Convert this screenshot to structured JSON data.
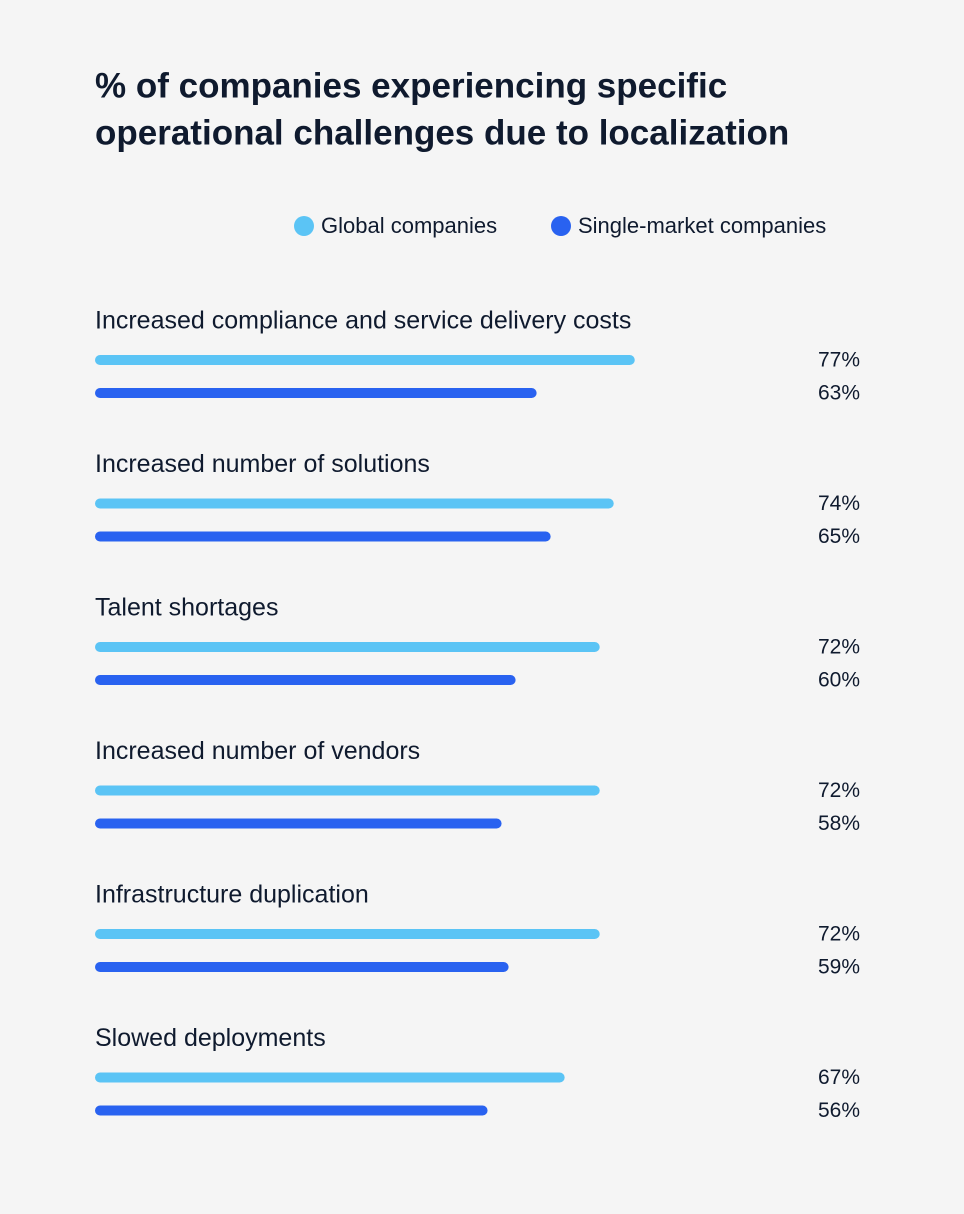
{
  "chart_data": {
    "type": "bar",
    "orientation": "horizontal",
    "title": [
      "% of companies experiencing specific",
      "operational challenges due to localization"
    ],
    "categories": [
      "Increased compliance and service delivery costs",
      "Increased number of solutions",
      "Talent shortages",
      "Increased number of vendors",
      "Infrastructure duplication",
      "Slowed deployments"
    ],
    "series": [
      {
        "name": "Global companies",
        "color": "#5bc4f5",
        "values": [
          77,
          74,
          72,
          72,
          72,
          67
        ],
        "value_labels": [
          "77%",
          "74%",
          "72%",
          "72%",
          "72%",
          "67%"
        ]
      },
      {
        "name": "Single-market companies",
        "color": "#2962f0",
        "values": [
          63,
          65,
          60,
          58,
          59,
          56
        ],
        "value_labels": [
          "63%",
          "65%",
          "60%",
          "58%",
          "59%",
          "56%"
        ]
      }
    ]
  }
}
